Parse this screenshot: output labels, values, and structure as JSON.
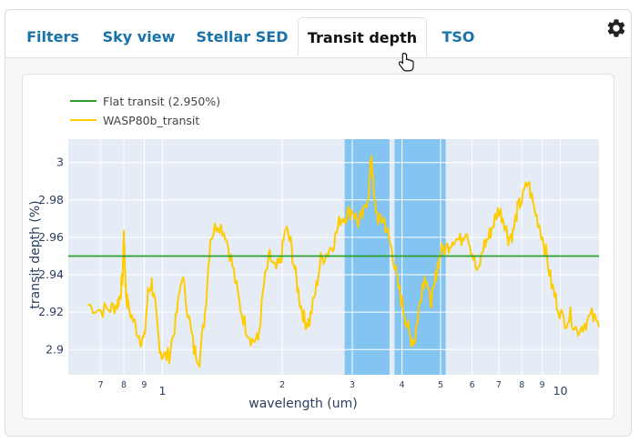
{
  "tabs": [
    {
      "label": "Filters",
      "active": false
    },
    {
      "label": "Sky view",
      "active": false
    },
    {
      "label": "Stellar SED",
      "active": false
    },
    {
      "label": "Transit depth",
      "active": true
    },
    {
      "label": "TSO",
      "active": false
    }
  ],
  "settings_icon": "gear-icon",
  "cursor_icon": "hand-pointer-icon",
  "colors": {
    "tab_link": "#1a73a8",
    "plot_bg": "#e5ecf6",
    "flat_line": "#2ca02c",
    "transit_line": "#ffcc00",
    "band_fill": "#72bdf0"
  },
  "chart_data": {
    "type": "line",
    "xlabel": "wavelength (um)",
    "ylabel": "transit depth (%)",
    "x_scale": "log",
    "xlim": [
      0.58,
      12.5
    ],
    "ylim": [
      2.8865,
      3.0125
    ],
    "x_major_ticks": [
      {
        "v": 1,
        "label": "1"
      },
      {
        "v": 2,
        "label": "2"
      },
      {
        "v": 10,
        "label": "10"
      }
    ],
    "x_minor_ticks": [
      {
        "v": 0.7,
        "label": "7"
      },
      {
        "v": 0.8,
        "label": "8"
      },
      {
        "v": 0.9,
        "label": "9"
      },
      {
        "v": 3,
        "label": "3"
      },
      {
        "v": 4,
        "label": "4"
      },
      {
        "v": 5,
        "label": "5"
      },
      {
        "v": 6,
        "label": "6"
      },
      {
        "v": 7,
        "label": "7"
      },
      {
        "v": 8,
        "label": "8"
      },
      {
        "v": 9,
        "label": "9"
      }
    ],
    "y_ticks": [
      {
        "v": 2.9,
        "label": "2.9"
      },
      {
        "v": 2.92,
        "label": "2.92"
      },
      {
        "v": 2.94,
        "label": "2.94"
      },
      {
        "v": 2.96,
        "label": "2.96"
      },
      {
        "v": 2.98,
        "label": "2.98"
      },
      {
        "v": 3.0,
        "label": "3"
      }
    ],
    "grid": true,
    "legend_placement": "top-left",
    "bands": [
      [
        2.87,
        3.72
      ],
      [
        3.83,
        5.15
      ]
    ],
    "series": [
      {
        "name": "Flat transit (2.950%)",
        "style": "flat",
        "x": [
          0.58,
          12.5
        ],
        "y": [
          2.95,
          2.95
        ]
      },
      {
        "name": "WASP80b_transit",
        "style": "transit",
        "x": [
          0.65,
          0.7,
          0.74,
          0.77,
          0.785,
          0.795,
          0.8,
          0.805,
          0.81,
          0.82,
          0.85,
          0.88,
          0.9,
          0.92,
          0.94,
          0.96,
          0.98,
          1.0,
          1.04,
          1.08,
          1.12,
          1.16,
          1.2,
          1.24,
          1.28,
          1.32,
          1.38,
          1.44,
          1.5,
          1.56,
          1.62,
          1.68,
          1.74,
          1.8,
          1.86,
          1.92,
          1.98,
          2.04,
          2.1,
          2.16,
          2.22,
          2.28,
          2.34,
          2.42,
          2.5,
          2.6,
          2.7,
          2.8,
          2.9,
          3.0,
          3.1,
          3.2,
          3.3,
          3.35,
          3.4,
          3.5,
          3.6,
          3.7,
          3.8,
          3.9,
          4.0,
          4.1,
          4.2,
          4.3,
          4.4,
          4.5,
          4.6,
          4.7,
          4.8,
          4.9,
          5.0,
          5.2,
          5.4,
          5.6,
          5.8,
          6.0,
          6.2,
          6.4,
          6.6,
          6.8,
          7.0,
          7.2,
          7.4,
          7.6,
          7.8,
          8.0,
          8.3,
          8.6,
          8.9,
          9.2,
          9.5,
          9.8,
          10.2,
          10.6,
          11.0,
          11.5,
          12.0,
          12.5
        ],
        "y": [
          2.924,
          2.921,
          2.922,
          2.924,
          2.93,
          2.94,
          2.962,
          2.945,
          2.93,
          2.923,
          2.914,
          2.906,
          2.905,
          2.93,
          2.936,
          2.922,
          2.904,
          2.896,
          2.897,
          2.915,
          2.94,
          2.92,
          2.9,
          2.895,
          2.92,
          2.96,
          2.968,
          2.962,
          2.945,
          2.925,
          2.912,
          2.905,
          2.905,
          2.935,
          2.95,
          2.942,
          2.947,
          2.965,
          2.957,
          2.94,
          2.925,
          2.915,
          2.915,
          2.93,
          2.948,
          2.952,
          2.958,
          2.97,
          2.972,
          2.975,
          2.968,
          2.972,
          2.985,
          3.005,
          2.98,
          2.968,
          2.97,
          2.96,
          2.95,
          2.935,
          2.925,
          2.915,
          2.906,
          2.905,
          2.92,
          2.935,
          2.94,
          2.925,
          2.93,
          2.944,
          2.952,
          2.955,
          2.96,
          2.958,
          2.965,
          2.952,
          2.94,
          2.955,
          2.96,
          2.968,
          2.975,
          2.97,
          2.96,
          2.962,
          2.975,
          2.98,
          2.99,
          2.975,
          2.965,
          2.952,
          2.935,
          2.925,
          2.915,
          2.918,
          2.91,
          2.914,
          2.918,
          2.912
        ]
      }
    ]
  }
}
